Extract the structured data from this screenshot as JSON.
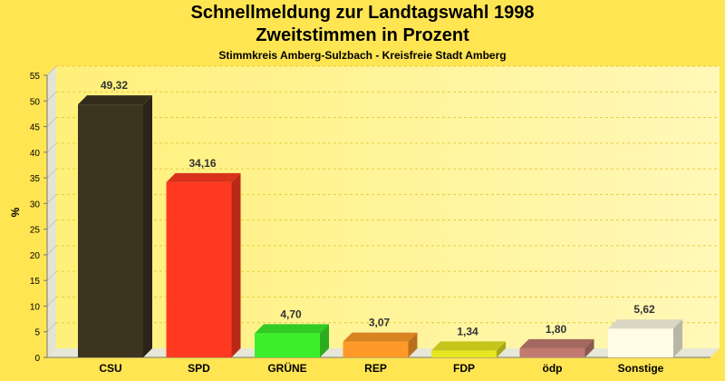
{
  "chart_data": {
    "type": "bar",
    "title": "Schnellmeldung zur Landtagswahl 1998",
    "subtitle": "Zweitstimmen in Prozent",
    "subsubtitle": "Stimmkreis Amberg-Sulzbach - Kreisfreie Stadt Amberg",
    "ylabel": "%",
    "xlabel": "",
    "ylim": [
      0,
      55
    ],
    "yticks": [
      0,
      5,
      10,
      15,
      20,
      25,
      30,
      35,
      40,
      45,
      50,
      55
    ],
    "grid": true,
    "categories": [
      "CSU",
      "SPD",
      "GRÜNE",
      "REP",
      "FDP",
      "ödp",
      "Sonstige"
    ],
    "values": [
      49.32,
      34.16,
      4.7,
      3.07,
      1.34,
      1.8,
      5.62
    ],
    "value_labels": [
      "49,32",
      "34,16",
      "4,70",
      "3,07",
      "1,34",
      "1,80",
      "5,62"
    ],
    "colors": [
      "#3D3420",
      "#FF3A20",
      "#3AEF2A",
      "#FF9A28",
      "#E6E620",
      "#C07A70",
      "#FFFDE6"
    ]
  }
}
